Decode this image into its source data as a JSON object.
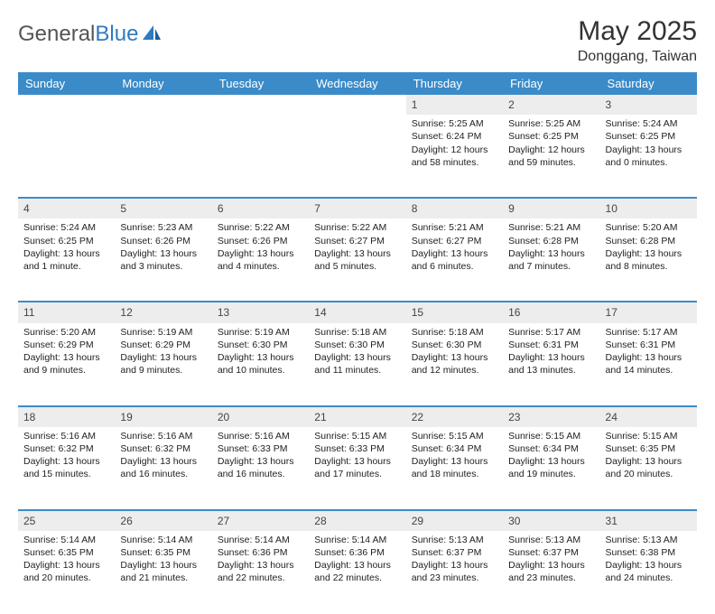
{
  "brand": {
    "name_a": "General",
    "name_b": "Blue"
  },
  "title": "May 2025",
  "location": "Donggang, Taiwan",
  "colors": {
    "header_bg": "#3b8bc9",
    "header_text": "#ffffff",
    "daynum_bg": "#ededed",
    "rule": "#3b8bc9",
    "logo_gray": "#555555",
    "logo_blue": "#2f7bbf"
  },
  "weekdays": [
    "Sunday",
    "Monday",
    "Tuesday",
    "Wednesday",
    "Thursday",
    "Friday",
    "Saturday"
  ],
  "weeks": [
    [
      null,
      null,
      null,
      null,
      {
        "d": "1",
        "sr": "5:25 AM",
        "ss": "6:24 PM",
        "dl": "12 hours and 58 minutes."
      },
      {
        "d": "2",
        "sr": "5:25 AM",
        "ss": "6:25 PM",
        "dl": "12 hours and 59 minutes."
      },
      {
        "d": "3",
        "sr": "5:24 AM",
        "ss": "6:25 PM",
        "dl": "13 hours and 0 minutes."
      }
    ],
    [
      {
        "d": "4",
        "sr": "5:24 AM",
        "ss": "6:25 PM",
        "dl": "13 hours and 1 minute."
      },
      {
        "d": "5",
        "sr": "5:23 AM",
        "ss": "6:26 PM",
        "dl": "13 hours and 3 minutes."
      },
      {
        "d": "6",
        "sr": "5:22 AM",
        "ss": "6:26 PM",
        "dl": "13 hours and 4 minutes."
      },
      {
        "d": "7",
        "sr": "5:22 AM",
        "ss": "6:27 PM",
        "dl": "13 hours and 5 minutes."
      },
      {
        "d": "8",
        "sr": "5:21 AM",
        "ss": "6:27 PM",
        "dl": "13 hours and 6 minutes."
      },
      {
        "d": "9",
        "sr": "5:21 AM",
        "ss": "6:28 PM",
        "dl": "13 hours and 7 minutes."
      },
      {
        "d": "10",
        "sr": "5:20 AM",
        "ss": "6:28 PM",
        "dl": "13 hours and 8 minutes."
      }
    ],
    [
      {
        "d": "11",
        "sr": "5:20 AM",
        "ss": "6:29 PM",
        "dl": "13 hours and 9 minutes."
      },
      {
        "d": "12",
        "sr": "5:19 AM",
        "ss": "6:29 PM",
        "dl": "13 hours and 9 minutes."
      },
      {
        "d": "13",
        "sr": "5:19 AM",
        "ss": "6:30 PM",
        "dl": "13 hours and 10 minutes."
      },
      {
        "d": "14",
        "sr": "5:18 AM",
        "ss": "6:30 PM",
        "dl": "13 hours and 11 minutes."
      },
      {
        "d": "15",
        "sr": "5:18 AM",
        "ss": "6:30 PM",
        "dl": "13 hours and 12 minutes."
      },
      {
        "d": "16",
        "sr": "5:17 AM",
        "ss": "6:31 PM",
        "dl": "13 hours and 13 minutes."
      },
      {
        "d": "17",
        "sr": "5:17 AM",
        "ss": "6:31 PM",
        "dl": "13 hours and 14 minutes."
      }
    ],
    [
      {
        "d": "18",
        "sr": "5:16 AM",
        "ss": "6:32 PM",
        "dl": "13 hours and 15 minutes."
      },
      {
        "d": "19",
        "sr": "5:16 AM",
        "ss": "6:32 PM",
        "dl": "13 hours and 16 minutes."
      },
      {
        "d": "20",
        "sr": "5:16 AM",
        "ss": "6:33 PM",
        "dl": "13 hours and 16 minutes."
      },
      {
        "d": "21",
        "sr": "5:15 AM",
        "ss": "6:33 PM",
        "dl": "13 hours and 17 minutes."
      },
      {
        "d": "22",
        "sr": "5:15 AM",
        "ss": "6:34 PM",
        "dl": "13 hours and 18 minutes."
      },
      {
        "d": "23",
        "sr": "5:15 AM",
        "ss": "6:34 PM",
        "dl": "13 hours and 19 minutes."
      },
      {
        "d": "24",
        "sr": "5:15 AM",
        "ss": "6:35 PM",
        "dl": "13 hours and 20 minutes."
      }
    ],
    [
      {
        "d": "25",
        "sr": "5:14 AM",
        "ss": "6:35 PM",
        "dl": "13 hours and 20 minutes."
      },
      {
        "d": "26",
        "sr": "5:14 AM",
        "ss": "6:35 PM",
        "dl": "13 hours and 21 minutes."
      },
      {
        "d": "27",
        "sr": "5:14 AM",
        "ss": "6:36 PM",
        "dl": "13 hours and 22 minutes."
      },
      {
        "d": "28",
        "sr": "5:14 AM",
        "ss": "6:36 PM",
        "dl": "13 hours and 22 minutes."
      },
      {
        "d": "29",
        "sr": "5:13 AM",
        "ss": "6:37 PM",
        "dl": "13 hours and 23 minutes."
      },
      {
        "d": "30",
        "sr": "5:13 AM",
        "ss": "6:37 PM",
        "dl": "13 hours and 23 minutes."
      },
      {
        "d": "31",
        "sr": "5:13 AM",
        "ss": "6:38 PM",
        "dl": "13 hours and 24 minutes."
      }
    ]
  ],
  "labels": {
    "sunrise": "Sunrise:",
    "sunset": "Sunset:",
    "daylight": "Daylight:"
  }
}
